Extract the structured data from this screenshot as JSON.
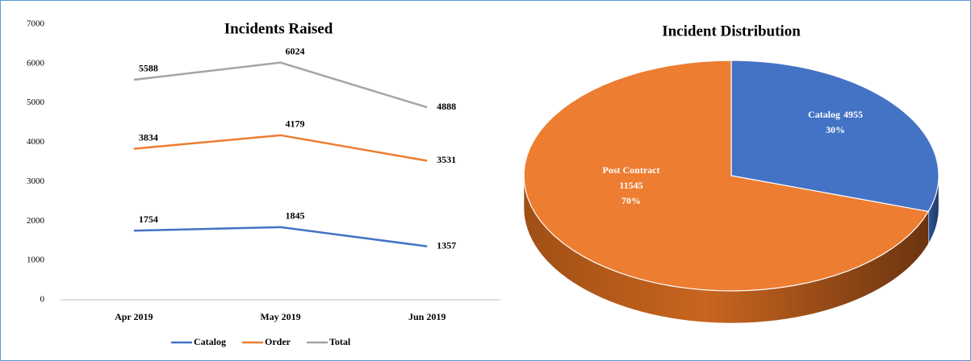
{
  "chart_data": [
    {
      "type": "line",
      "title": "Incidents Raised",
      "categories": [
        "Apr 2019",
        "May 2019",
        "Jun 2019"
      ],
      "series": [
        {
          "name": "Catalog",
          "color": "#4472c4",
          "values": [
            1754,
            1845,
            1357
          ]
        },
        {
          "name": "Order",
          "color": "#ed7d31",
          "values": [
            3834,
            4179,
            3531
          ]
        },
        {
          "name": "Total",
          "color": "#a5a5a5",
          "values": [
            5588,
            6024,
            4888
          ]
        }
      ],
      "ylim": [
        0,
        7000
      ],
      "yticks": [
        0,
        1000,
        2000,
        3000,
        4000,
        5000,
        6000,
        7000
      ],
      "grid": false,
      "legend": "bottom"
    },
    {
      "type": "pie",
      "title": "Incident Distribution",
      "categories": [
        "Catalog",
        "Post Contract"
      ],
      "values": [
        4955,
        11545
      ],
      "percent_labels": [
        "30%",
        "70%"
      ],
      "colors": [
        "#4472c4",
        "#ed7d31"
      ]
    }
  ]
}
